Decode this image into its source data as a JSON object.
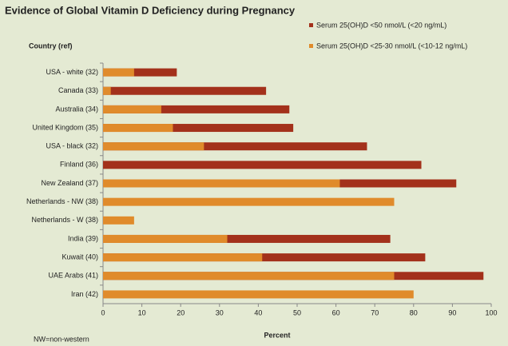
{
  "chart_data": {
    "type": "bar",
    "orientation": "horizontal",
    "overlap": true,
    "title": "Evidence of Global Vitamin D Deficiency during Pregnancy",
    "y_label": "Country (ref)",
    "x_label": "Percent",
    "note": "NW=non-western",
    "categories": [
      "USA - white (32)",
      "Canada (33)",
      "Australia (34)",
      "United Kingdom (35)",
      "USA - black (32)",
      "Finland (36)",
      "New Zealand (37)",
      "Netherlands - NW (38)",
      "Netherlands - W (38)",
      "India (39)",
      "Kuwait (40)",
      "UAE Arabs (41)",
      "Iran (42)"
    ],
    "series": [
      {
        "name": "Serum 25(OH)D <50 nmol/L (<20 ng/mL)",
        "color": "#a3311b",
        "values": [
          19,
          42,
          48,
          49,
          68,
          82,
          91,
          null,
          null,
          74,
          83,
          98,
          null
        ]
      },
      {
        "name": "Serum 25(OH)D <25-30 nmol/L (<10-12 ng/mL)",
        "color": "#e08b2b",
        "values": [
          8,
          2,
          15,
          18,
          26,
          null,
          61,
          75,
          8,
          32,
          41,
          75,
          80
        ]
      }
    ],
    "xlim": [
      0,
      100
    ],
    "xticks": [
      0,
      10,
      20,
      30,
      40,
      50,
      60,
      70,
      80,
      90,
      100
    ],
    "legend": "top-right"
  }
}
